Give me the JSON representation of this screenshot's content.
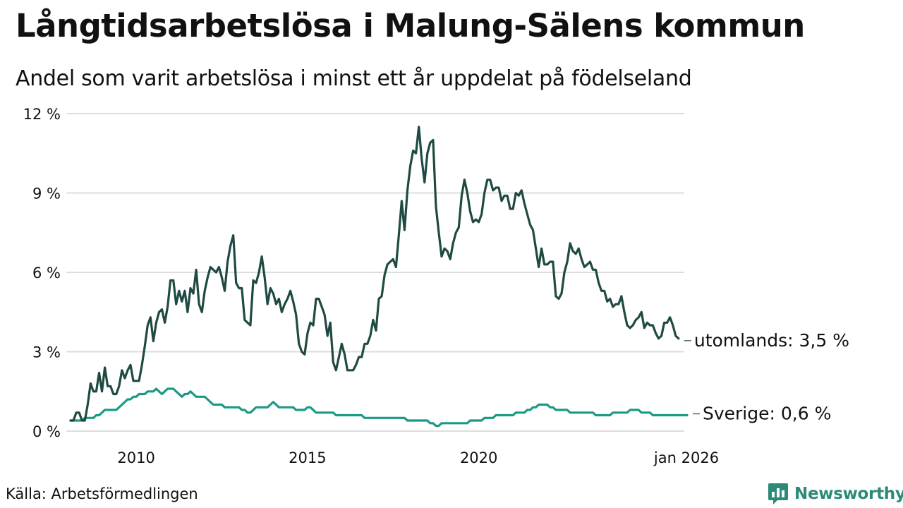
{
  "title": "Långtidsarbetslösa i Malung-Sälens kommun",
  "subtitle": "Andel som varit arbetslösa i minst ett år uppdelat på födelseland",
  "source": "Källa: Arbetsförmedlingen",
  "brand": {
    "name": "Newsworthy",
    "icon": "newsworthy-logo-icon"
  },
  "colors": {
    "utomlands": "#1f4a43",
    "sverige": "#1a9a86",
    "grid": "#dddddd",
    "brand": "#2b8a78"
  },
  "chart_data": {
    "type": "line",
    "x_start": 2008.083,
    "x_step": 0.08333,
    "ylim": [
      0,
      12
    ],
    "y_ticks": [
      0,
      3,
      6,
      9,
      12
    ],
    "y_tick_labels": [
      "0 %",
      "3 %",
      "6 %",
      "9 %",
      "12 %"
    ],
    "x_ticks": [
      2010,
      2015,
      2020,
      2026
    ],
    "x_tick_labels": [
      "2010",
      "2015",
      "2020",
      "jan 2026"
    ],
    "series": [
      {
        "name": "utomlands",
        "label": "utomlands: 3,5 %",
        "values": [
          0.4,
          0.4,
          0.7,
          0.7,
          0.4,
          0.4,
          1.0,
          1.8,
          1.5,
          1.5,
          2.2,
          1.5,
          2.4,
          1.7,
          1.7,
          1.4,
          1.4,
          1.7,
          2.3,
          2.0,
          2.3,
          2.5,
          1.9,
          1.9,
          1.9,
          2.5,
          3.2,
          4.0,
          4.3,
          3.4,
          4.1,
          4.5,
          4.6,
          4.1,
          4.7,
          5.7,
          5.7,
          4.8,
          5.3,
          4.9,
          5.3,
          4.5,
          5.4,
          5.2,
          6.1,
          4.8,
          4.5,
          5.3,
          5.8,
          6.2,
          6.1,
          6.0,
          6.2,
          5.8,
          5.3,
          6.4,
          7.0,
          7.4,
          5.6,
          5.4,
          5.4,
          4.2,
          4.1,
          4.0,
          5.7,
          5.6,
          6.0,
          6.6,
          5.8,
          4.8,
          5.4,
          5.2,
          4.8,
          5.0,
          4.5,
          4.8,
          5.0,
          5.3,
          4.9,
          4.4,
          3.3,
          3.0,
          2.9,
          3.7,
          4.1,
          4.0,
          5.0,
          5.0,
          4.7,
          4.4,
          3.6,
          4.1,
          2.6,
          2.3,
          2.8,
          3.3,
          2.9,
          2.3,
          2.3,
          2.3,
          2.5,
          2.8,
          2.8,
          3.3,
          3.3,
          3.6,
          4.2,
          3.8,
          5.0,
          5.1,
          5.9,
          6.3,
          6.4,
          6.5,
          6.2,
          7.4,
          8.7,
          7.6,
          9.1,
          10.0,
          10.6,
          10.5,
          11.5,
          10.3,
          9.4,
          10.5,
          10.9,
          11.0,
          8.5,
          7.5,
          6.6,
          6.9,
          6.8,
          6.5,
          7.1,
          7.5,
          7.7,
          8.9,
          9.5,
          9.0,
          8.3,
          7.9,
          8.0,
          7.9,
          8.2,
          9.0,
          9.5,
          9.5,
          9.1,
          9.2,
          9.2,
          8.7,
          8.9,
          8.9,
          8.4,
          8.4,
          9.0,
          8.9,
          9.1,
          8.6,
          8.2,
          7.8,
          7.6,
          6.9,
          6.2,
          6.9,
          6.3,
          6.3,
          6.4,
          6.4,
          5.1,
          5.0,
          5.2,
          6.0,
          6.4,
          7.1,
          6.8,
          6.7,
          6.9,
          6.5,
          6.2,
          6.3,
          6.4,
          6.1,
          6.1,
          5.6,
          5.3,
          5.3,
          4.9,
          5.0,
          4.7,
          4.8,
          4.8,
          5.1,
          4.5,
          4.0,
          3.9,
          4.0,
          4.2,
          4.3,
          4.5,
          3.9,
          4.1,
          4.0,
          4.0,
          3.7,
          3.5,
          3.6,
          4.1,
          4.1,
          4.3,
          4.0,
          3.6,
          3.5
        ]
      },
      {
        "name": "Sverige",
        "label": "Sverige: 0,6 %",
        "values": [
          0.4,
          0.4,
          0.4,
          0.4,
          0.4,
          0.5,
          0.5,
          0.5,
          0.5,
          0.6,
          0.6,
          0.7,
          0.8,
          0.8,
          0.8,
          0.8,
          0.8,
          0.9,
          1.0,
          1.1,
          1.2,
          1.2,
          1.3,
          1.3,
          1.4,
          1.4,
          1.4,
          1.5,
          1.5,
          1.5,
          1.6,
          1.5,
          1.4,
          1.5,
          1.6,
          1.6,
          1.6,
          1.5,
          1.4,
          1.3,
          1.4,
          1.4,
          1.5,
          1.4,
          1.3,
          1.3,
          1.3,
          1.3,
          1.2,
          1.1,
          1.0,
          1.0,
          1.0,
          1.0,
          0.9,
          0.9,
          0.9,
          0.9,
          0.9,
          0.9,
          0.8,
          0.8,
          0.7,
          0.7,
          0.8,
          0.9,
          0.9,
          0.9,
          0.9,
          0.9,
          1.0,
          1.1,
          1.0,
          0.9,
          0.9,
          0.9,
          0.9,
          0.9,
          0.9,
          0.8,
          0.8,
          0.8,
          0.8,
          0.9,
          0.9,
          0.8,
          0.7,
          0.7,
          0.7,
          0.7,
          0.7,
          0.7,
          0.7,
          0.6,
          0.6,
          0.6,
          0.6,
          0.6,
          0.6,
          0.6,
          0.6,
          0.6,
          0.6,
          0.5,
          0.5,
          0.5,
          0.5,
          0.5,
          0.5,
          0.5,
          0.5,
          0.5,
          0.5,
          0.5,
          0.5,
          0.5,
          0.5,
          0.5,
          0.4,
          0.4,
          0.4,
          0.4,
          0.4,
          0.4,
          0.4,
          0.4,
          0.3,
          0.3,
          0.2,
          0.2,
          0.3,
          0.3,
          0.3,
          0.3,
          0.3,
          0.3,
          0.3,
          0.3,
          0.3,
          0.3,
          0.4,
          0.4,
          0.4,
          0.4,
          0.4,
          0.5,
          0.5,
          0.5,
          0.5,
          0.6,
          0.6,
          0.6,
          0.6,
          0.6,
          0.6,
          0.6,
          0.7,
          0.7,
          0.7,
          0.7,
          0.8,
          0.8,
          0.9,
          0.9,
          1.0,
          1.0,
          1.0,
          1.0,
          0.9,
          0.9,
          0.8,
          0.8,
          0.8,
          0.8,
          0.8,
          0.7,
          0.7,
          0.7,
          0.7,
          0.7,
          0.7,
          0.7,
          0.7,
          0.7,
          0.6,
          0.6,
          0.6,
          0.6,
          0.6,
          0.6,
          0.7,
          0.7,
          0.7,
          0.7,
          0.7,
          0.7,
          0.8,
          0.8,
          0.8,
          0.8,
          0.7,
          0.7,
          0.7,
          0.7,
          0.6,
          0.6,
          0.6,
          0.6,
          0.6,
          0.6,
          0.6,
          0.6,
          0.6,
          0.6,
          0.6,
          0.6,
          0.6
        ]
      }
    ]
  }
}
